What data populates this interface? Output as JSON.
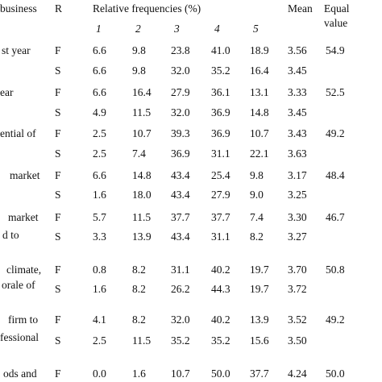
{
  "table": {
    "header": {
      "label": "business",
      "r": "R",
      "freq": "Relative frequencies (%)",
      "levels": [
        "1",
        "2",
        "3",
        "4",
        "5"
      ],
      "mean": "Mean",
      "equal": [
        "Equal",
        "value"
      ]
    },
    "rows": [
      {
        "label": [
          "st year"
        ],
        "lines": [
          {
            "r": "F",
            "freqs": [
              "6.6",
              "9.8",
              "23.8",
              "41.0",
              "18.9"
            ],
            "mean": "3.56",
            "equal": "54.9"
          },
          {
            "r": "S",
            "freqs": [
              "6.6",
              "9.8",
              "32.0",
              "35.2",
              "16.4"
            ],
            "mean": "3.45"
          }
        ]
      },
      {
        "label": [
          "ear"
        ],
        "lines": [
          {
            "r": "F",
            "freqs": [
              "6.6",
              "16.4",
              "27.9",
              "36.1",
              "13.1"
            ],
            "mean": "3.33",
            "equal": "52.5"
          },
          {
            "r": "S",
            "freqs": [
              "4.9",
              "11.5",
              "32.0",
              "36.9",
              "14.8"
            ],
            "mean": "3.45"
          }
        ]
      },
      {
        "label": [
          "ential of"
        ],
        "lines": [
          {
            "r": "F",
            "freqs": [
              "2.5",
              "10.7",
              "39.3",
              "36.9",
              "10.7"
            ],
            "mean": "3.43",
            "equal": "49.2"
          },
          {
            "r": "S",
            "freqs": [
              "2.5",
              "7.4",
              "36.9",
              "31.1",
              "22.1"
            ],
            "mean": "3.63"
          }
        ]
      },
      {
        "label": [
          "market"
        ],
        "lines": [
          {
            "r": "F",
            "freqs": [
              "6.6",
              "14.8",
              "43.4",
              "25.4",
              "9.8"
            ],
            "mean": "3.17",
            "equal": "48.4"
          },
          {
            "r": "S",
            "freqs": [
              "1.6",
              "18.0",
              "43.4",
              "27.9",
              "9.0"
            ],
            "mean": "3.25"
          }
        ]
      },
      {
        "label": [
          "market",
          "d      to"
        ],
        "lines": [
          {
            "r": "F",
            "freqs": [
              "5.7",
              "11.5",
              "37.7",
              "37.7",
              "7.4"
            ],
            "mean": "3.30",
            "equal": "46.7"
          },
          {
            "r": "S",
            "freqs": [
              "3.3",
              "13.9",
              "43.4",
              "31.1",
              "8.2"
            ],
            "mean": "3.27"
          }
        ]
      },
      {
        "label": [
          "climate,",
          "orale of"
        ],
        "lines": [
          {
            "r": "F",
            "freqs": [
              "0.8",
              "8.2",
              "31.1",
              "40.2",
              "19.7"
            ],
            "mean": "3.70",
            "equal": "50.8"
          },
          {
            "r": "S",
            "freqs": [
              "1.6",
              "8.2",
              "26.2",
              "44.3",
              "19.7"
            ],
            "mean": "3.72"
          }
        ]
      },
      {
        "label": [
          "firm to",
          "fessional"
        ],
        "lines": [
          {
            "r": "F",
            "freqs": [
              "4.1",
              "8.2",
              "32.0",
              "40.2",
              "13.9"
            ],
            "mean": "3.52",
            "equal": "49.2"
          },
          {
            "r": "S",
            "freqs": [
              "2.5",
              "11.5",
              "35.2",
              "35.2",
              "15.6"
            ],
            "mean": "3.50"
          }
        ]
      },
      {
        "label": [
          "ods and"
        ],
        "lines": [
          {
            "r": "F",
            "freqs": [
              "0.0",
              "1.6",
              "10.7",
              "50.0",
              "37.7"
            ],
            "mean": "4.24",
            "equal": "50.0"
          }
        ]
      }
    ]
  }
}
